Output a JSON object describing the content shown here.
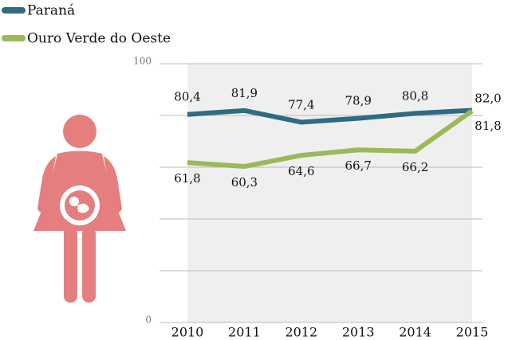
{
  "chart_data": {
    "type": "line",
    "categories": [
      "2010",
      "2011",
      "2012",
      "2013",
      "2014",
      "2015"
    ],
    "series": [
      {
        "name": "Paraná",
        "color": "#2f6b82",
        "values": [
          80.4,
          81.9,
          77.4,
          78.9,
          80.8,
          82.0
        ],
        "value_labels": [
          "80,4",
          "81,9",
          "77,4",
          "78,9",
          "80,8",
          "82,0"
        ]
      },
      {
        "name": "Ouro Verde do Oeste",
        "color": "#9cb85a",
        "values": [
          61.8,
          60.3,
          64.6,
          66.7,
          66.2,
          81.8
        ],
        "value_labels": [
          "61,8",
          "60,3",
          "64,6",
          "66,7",
          "66,2",
          "81,8"
        ]
      }
    ],
    "ylim": [
      0,
      100
    ],
    "yticks": [
      0,
      100
    ],
    "ygrid": [
      20,
      40,
      60,
      80
    ],
    "grid": true
  }
}
